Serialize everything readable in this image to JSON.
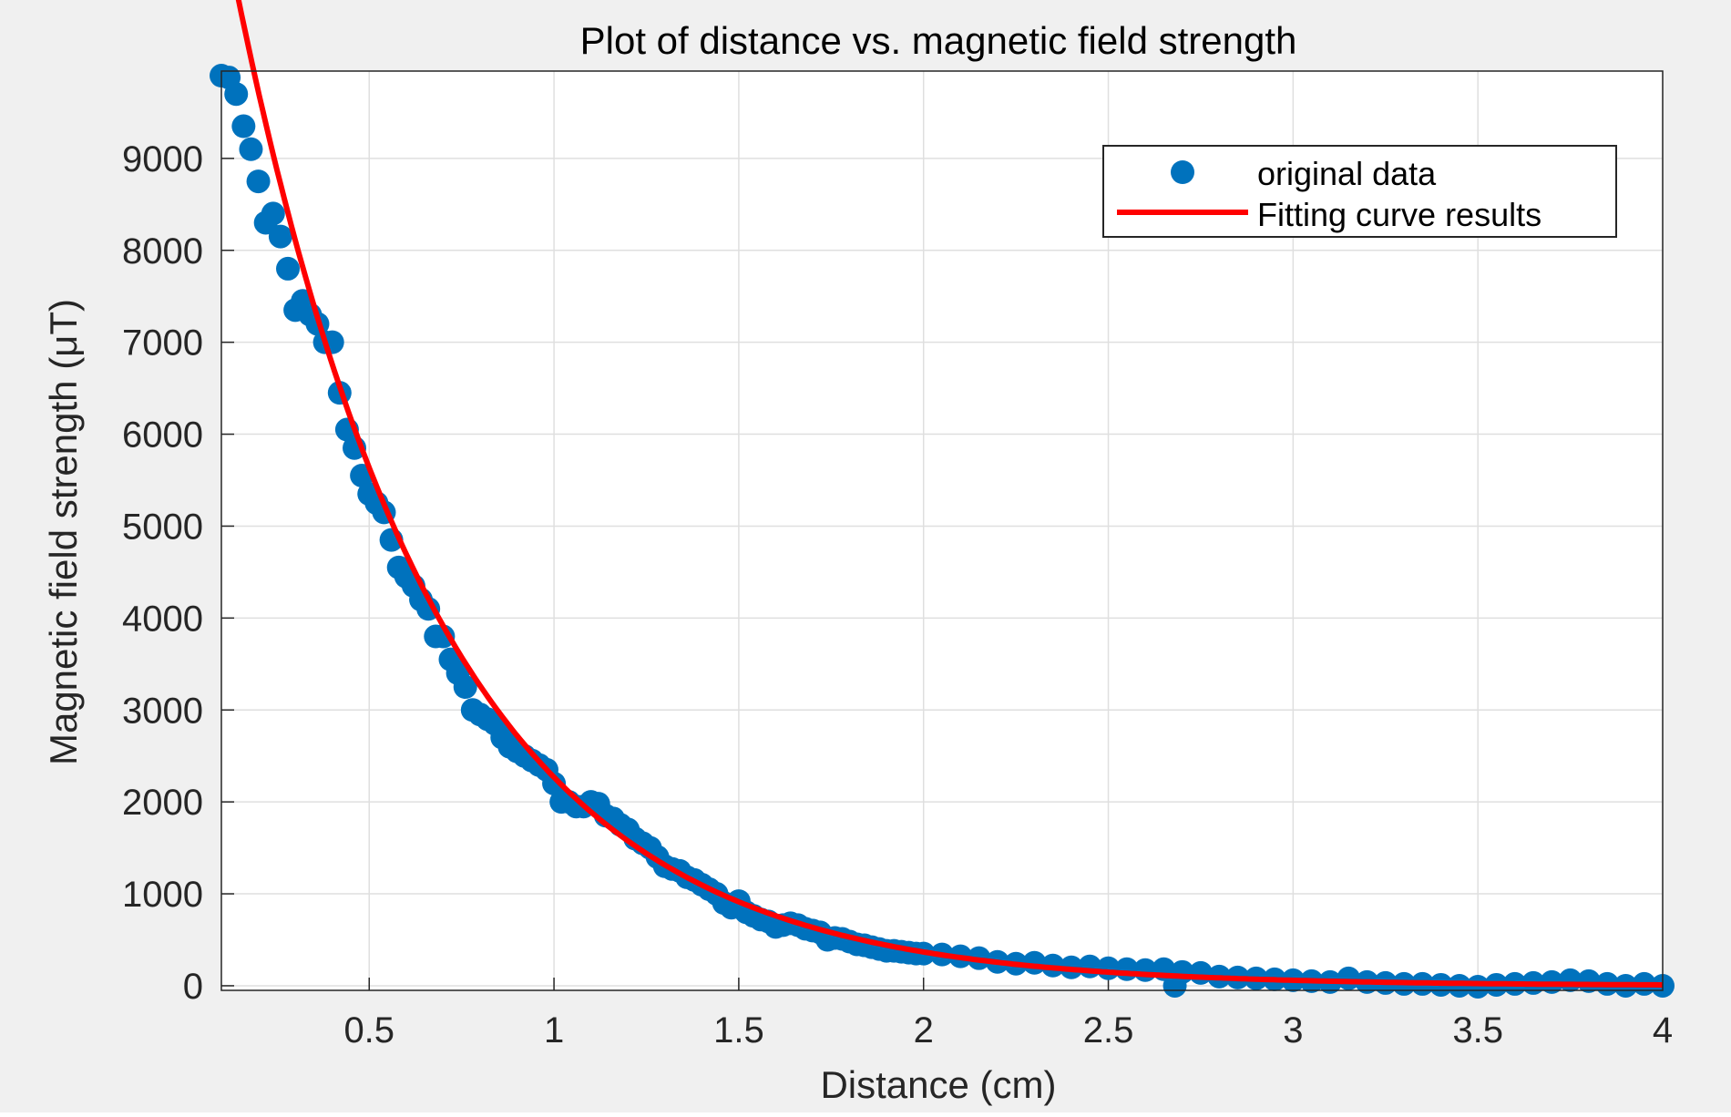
{
  "chart_data": {
    "type": "scatter",
    "title": "Plot of distance vs. magnetic field strength",
    "xlabel": "Distance (cm)",
    "ylabel": "Magnetic field strength (μT)",
    "xlim": [
      0.1,
      4
    ],
    "ylim": [
      -50,
      9950
    ],
    "xticks": [
      0.5,
      1,
      1.5,
      2,
      2.5,
      3,
      3.5,
      4
    ],
    "xtick_labels": [
      "0.5",
      "1",
      "1.5",
      "2",
      "2.5",
      "3",
      "3.5",
      "4"
    ],
    "yticks": [
      0,
      1000,
      2000,
      3000,
      4000,
      5000,
      6000,
      7000,
      8000,
      9000
    ],
    "ytick_labels": [
      "0",
      "1000",
      "2000",
      "3000",
      "4000",
      "5000",
      "6000",
      "7000",
      "8000",
      "9000"
    ],
    "grid": true,
    "legend": {
      "position": "top-right",
      "entries": [
        "original data",
        "Fitting curve results"
      ]
    },
    "colors": {
      "points": "#0072BD",
      "curve": "#FF0000",
      "background": "#F0F0F0"
    },
    "series": [
      {
        "name": "original data",
        "kind": "scatter",
        "x": [
          0.1,
          0.12,
          0.14,
          0.16,
          0.18,
          0.2,
          0.22,
          0.24,
          0.26,
          0.28,
          0.3,
          0.32,
          0.34,
          0.36,
          0.38,
          0.4,
          0.42,
          0.44,
          0.46,
          0.48,
          0.5,
          0.52,
          0.54,
          0.56,
          0.58,
          0.6,
          0.62,
          0.64,
          0.66,
          0.68,
          0.7,
          0.72,
          0.74,
          0.76,
          0.78,
          0.8,
          0.82,
          0.84,
          0.86,
          0.88,
          0.9,
          0.92,
          0.94,
          0.96,
          0.98,
          1.0,
          1.02,
          1.04,
          1.06,
          1.08,
          1.1,
          1.12,
          1.14,
          1.16,
          1.18,
          1.2,
          1.22,
          1.24,
          1.26,
          1.28,
          1.3,
          1.32,
          1.34,
          1.36,
          1.38,
          1.4,
          1.42,
          1.44,
          1.46,
          1.48,
          1.5,
          1.52,
          1.54,
          1.56,
          1.58,
          1.6,
          1.62,
          1.64,
          1.66,
          1.68,
          1.7,
          1.72,
          1.74,
          1.76,
          1.78,
          1.8,
          1.82,
          1.84,
          1.86,
          1.88,
          1.9,
          1.92,
          1.94,
          1.96,
          1.98,
          2.0,
          2.05,
          2.1,
          2.15,
          2.2,
          2.25,
          2.3,
          2.35,
          2.4,
          2.45,
          2.5,
          2.55,
          2.6,
          2.65,
          2.68,
          2.7,
          2.75,
          2.8,
          2.85,
          2.9,
          2.95,
          3.0,
          3.05,
          3.1,
          3.15,
          3.2,
          3.25,
          3.3,
          3.35,
          3.4,
          3.45,
          3.5,
          3.55,
          3.6,
          3.65,
          3.7,
          3.75,
          3.8,
          3.85,
          3.9,
          3.95,
          4.0
        ],
        "y": [
          9900,
          9880,
          9700,
          9350,
          9100,
          8750,
          8300,
          8400,
          8150,
          7800,
          7350,
          7450,
          7300,
          7200,
          7000,
          7000,
          6450,
          6050,
          5850,
          5550,
          5350,
          5250,
          5150,
          4850,
          4550,
          4450,
          4350,
          4200,
          4100,
          3800,
          3800,
          3550,
          3400,
          3250,
          3000,
          2950,
          2900,
          2850,
          2700,
          2600,
          2550,
          2500,
          2450,
          2400,
          2350,
          2200,
          2000,
          2000,
          1950,
          1950,
          2000,
          1980,
          1850,
          1820,
          1750,
          1700,
          1600,
          1550,
          1500,
          1400,
          1300,
          1270,
          1250,
          1180,
          1150,
          1100,
          1050,
          1000,
          900,
          850,
          920,
          800,
          760,
          720,
          700,
          640,
          660,
          680,
          660,
          620,
          600,
          580,
          500,
          520,
          510,
          480,
          450,
          440,
          420,
          400,
          380,
          380,
          370,
          360,
          350,
          350,
          340,
          320,
          300,
          260,
          240,
          250,
          220,
          200,
          210,
          190,
          180,
          170,
          180,
          0,
          150,
          140,
          100,
          90,
          80,
          70,
          60,
          50,
          40,
          80,
          40,
          30,
          20,
          20,
          10,
          0,
          -10,
          10,
          20,
          30,
          40,
          60,
          50,
          20,
          0,
          20,
          0
        ]
      },
      {
        "name": "Fitting curve results",
        "kind": "line",
        "model": "y = a*exp(-b*x)",
        "a": 14000,
        "b": 1.82
      }
    ]
  }
}
